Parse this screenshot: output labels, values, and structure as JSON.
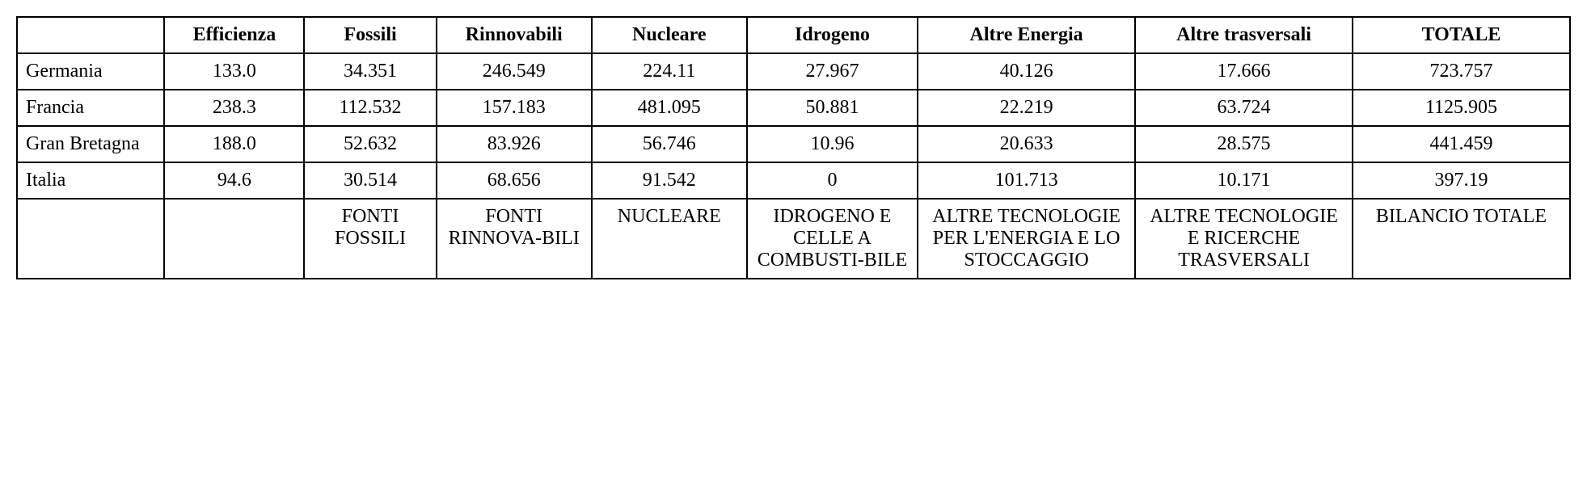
{
  "table": {
    "type": "table",
    "background_color": "#ffffff",
    "border_color": "#000000",
    "border_width": 2,
    "font_family": "Georgia, serif",
    "header_fontsize": 24,
    "cell_fontsize": 24,
    "column_widths_pct": [
      9.5,
      9,
      8.5,
      10,
      10,
      11,
      14,
      14,
      14
    ],
    "columns": [
      "",
      "Efficienza",
      "Fossili",
      "Rinnovabili",
      "Nucleare",
      "Idrogeno",
      "Altre Energia",
      "Altre trasversali",
      "TOTALE"
    ],
    "rows": [
      {
        "label": "Germania",
        "values": [
          "133.0",
          "34.351",
          "246.549",
          "224.11",
          "27.967",
          "40.126",
          "17.666",
          "723.757"
        ]
      },
      {
        "label": "Francia",
        "values": [
          "238.3",
          "112.532",
          "157.183",
          "481.095",
          "50.881",
          "22.219",
          "63.724",
          "1125.905"
        ]
      },
      {
        "label": "Gran Bretagna",
        "values": [
          "188.0",
          "52.632",
          "83.926",
          "56.746",
          "10.96",
          "20.633",
          "28.575",
          "441.459"
        ]
      },
      {
        "label": "Italia",
        "values": [
          "94.6",
          "30.514",
          "68.656",
          "91.542",
          "0",
          "101.713",
          "10.171",
          "397.19"
        ]
      }
    ],
    "footer": [
      "",
      "",
      "FONTI FOSSILI",
      "FONTI RINNOVA-BILI",
      "NUCLEARE",
      "IDROGENO E CELLE A COMBUSTI-BILE",
      "ALTRE TECNOLOGIE PER L'ENERGIA E LO STOCCAGGIO",
      "ALTRE TECNOLOGIE E RICERCHE TRASVERSALI",
      "BILANCIO TOTALE"
    ]
  }
}
